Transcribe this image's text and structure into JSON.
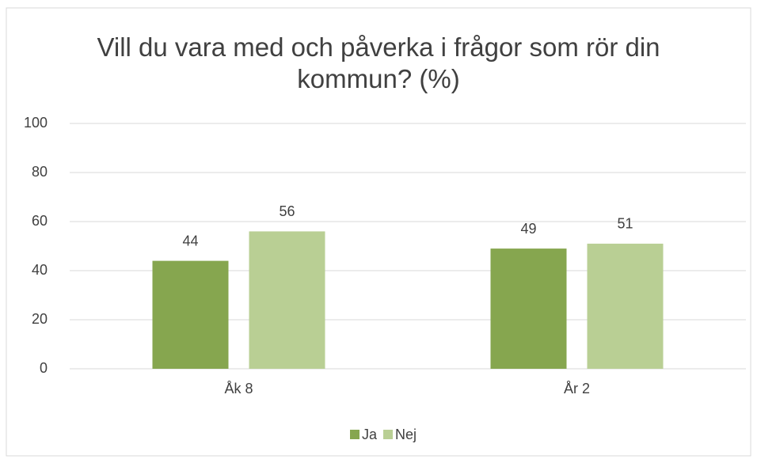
{
  "chart_data": {
    "type": "bar",
    "title": "Vill du vara med och påverka i frågor som rör din kommun? (%)",
    "categories": [
      "Åk 8",
      "År 2"
    ],
    "series": [
      {
        "name": "Ja",
        "color": "#86a64f",
        "values": [
          44,
          49
        ]
      },
      {
        "name": "Nej",
        "color": "#b9cf94",
        "values": [
          56,
          51
        ]
      }
    ],
    "ylim": [
      0,
      100
    ],
    "yticks": [
      0,
      20,
      40,
      60,
      80,
      100
    ],
    "grid": true,
    "legend": "bottom"
  }
}
